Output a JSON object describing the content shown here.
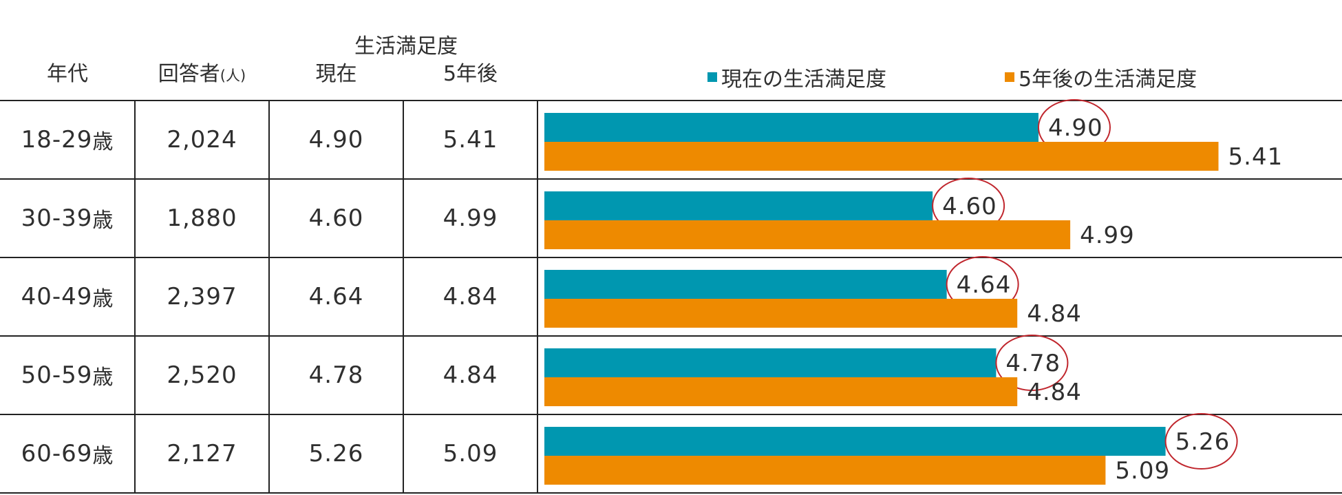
{
  "header": {
    "group_title": "生活満足度",
    "col_age": "年代",
    "col_respondents": "回答者",
    "col_respondents_unit": "(人)",
    "col_current": "現在",
    "col_future": "5年後"
  },
  "legend": [
    {
      "label": "現在の生活満足度",
      "color": "#0097b0"
    },
    {
      "label": "5年後の生活満足度",
      "color": "#ee8a00"
    }
  ],
  "rows": [
    {
      "age": "18-29",
      "age_suffix": "歳",
      "respondents": "2,024",
      "current": "4.90",
      "future": "5.41"
    },
    {
      "age": "30-39",
      "age_suffix": "歳",
      "respondents": "1,880",
      "current": "4.60",
      "future": "4.99"
    },
    {
      "age": "40-49",
      "age_suffix": "歳",
      "respondents": "2,397",
      "current": "4.64",
      "future": "4.84"
    },
    {
      "age": "50-59",
      "age_suffix": "歳",
      "respondents": "2,520",
      "current": "4.78",
      "future": "4.84"
    },
    {
      "age": "60-69",
      "age_suffix": "歳",
      "respondents": "2,127",
      "current": "5.26",
      "future": "5.09"
    }
  ],
  "chart_data": {
    "type": "bar",
    "orientation": "horizontal",
    "categories": [
      "18-29歳",
      "30-39歳",
      "40-49歳",
      "50-59歳",
      "60-69歳"
    ],
    "series": [
      {
        "name": "現在の生活満足度",
        "values": [
          4.9,
          4.6,
          4.64,
          4.78,
          5.26
        ],
        "color": "#0097b0",
        "labels_circled": true
      },
      {
        "name": "5年後の生活満足度",
        "values": [
          5.41,
          4.99,
          4.84,
          4.84,
          5.09
        ],
        "color": "#ee8a00"
      }
    ],
    "xlim": [
      3.5,
      5.76
    ],
    "axis_visible": false,
    "grid": false,
    "legend_position": "top"
  },
  "colors": {
    "highlight_circle": "#c0262d"
  }
}
